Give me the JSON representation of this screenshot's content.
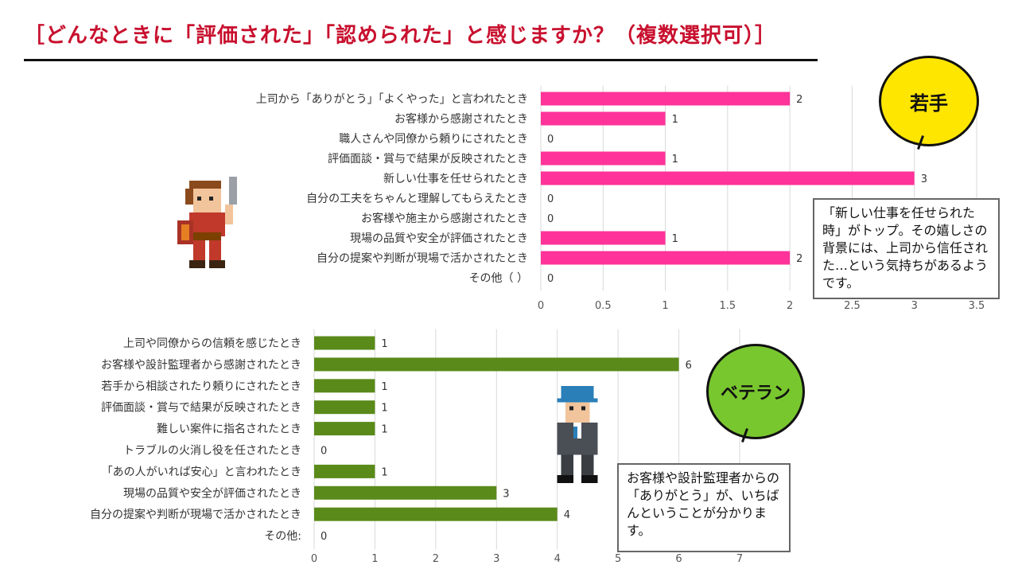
{
  "title": "［どんなときに「評価された」「認められた」と感じますか？（複数選択可）］",
  "badges": {
    "young": "若手",
    "veteran": "ベテラン"
  },
  "notes": {
    "young": "「新しい仕事を任せられた時」がトップ。その嬉しさの背景には、上司から信任された…という気持ちがあるようです。",
    "veteran": "お客様や設計監理者からの「ありがとう」が、いちばんということが分かります。"
  },
  "colors": {
    "title": "#c8102e",
    "young_bar": "#ff3399",
    "veteran_bar": "#5a8a1a",
    "young_badge": "#ffe600",
    "veteran_badge": "#79c72f"
  },
  "icons": [
    "young-hero-sprite",
    "veteran-worker-sprite"
  ],
  "chart_data": [
    {
      "type": "bar",
      "orientation": "horizontal",
      "series_label": "若手",
      "categories": [
        "上司から「ありがとう」「よくやった」と言われたとき",
        "お客様から感謝されたとき",
        "職人さんや同僚から頼りにされたとき",
        "評価面談・賞与で結果が反映されたとき",
        "新しい仕事を任せられたとき",
        "自分の工夫をちゃんと理解してもらえたとき",
        "お客様や施主から感謝されたとき",
        "現場の品質や安全が評価されたとき",
        "自分の提案や判断が現場で活かされたとき",
        "その他（ ）"
      ],
      "values": [
        2,
        1,
        0,
        1,
        3,
        0,
        0,
        1,
        2,
        0
      ],
      "xlim": [
        0,
        3.5
      ],
      "xticks": [
        "0",
        "0.5",
        "1",
        "1.5",
        "2",
        "2.5",
        "3",
        "3.5"
      ],
      "grid": true,
      "color": "#ff3399"
    },
    {
      "type": "bar",
      "orientation": "horizontal",
      "series_label": "ベテラン",
      "categories": [
        "上司や同僚からの信頼を感じたとき",
        "お客様や設計監理者から感謝されたとき",
        "若手から相談されたり頼りにされたとき",
        "評価面談・賞与で結果が反映されたとき",
        "難しい案件に指名されたとき",
        "トラブルの火消し役を任されたとき",
        "「あの人がいれば安心」と言われたとき",
        "現場の品質や安全が評価されたとき",
        "自分の提案や判断が現場で活かされたとき",
        "その他:"
      ],
      "values": [
        1,
        6,
        1,
        1,
        1,
        0,
        1,
        3,
        4,
        0
      ],
      "xlim": [
        0,
        7
      ],
      "xticks": [
        "0",
        "1",
        "2",
        "3",
        "4",
        "5",
        "6",
        "7"
      ],
      "grid": true,
      "color": "#5a8a1a"
    }
  ]
}
